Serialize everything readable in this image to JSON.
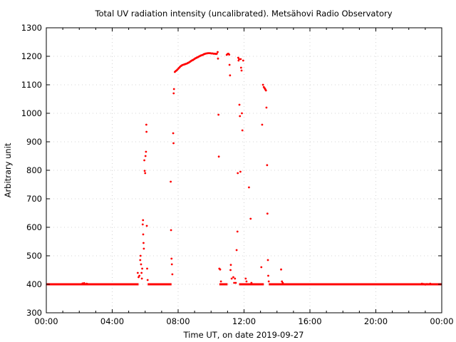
{
  "chart_data": {
    "type": "scatter",
    "title": "Total UV radiation intensity (uncalibrated). Metsähovi Radio Observatory",
    "xlabel": "Time UT, on date 2019-09-27",
    "ylabel": "Arbitrary unit",
    "xlim": [
      0,
      24
    ],
    "ylim": [
      300,
      1300
    ],
    "grid": true,
    "point_color": "#ff0000",
    "x_ticks": [
      {
        "value": 0,
        "label": "00:00"
      },
      {
        "value": 4,
        "label": "04:00"
      },
      {
        "value": 8,
        "label": "08:00"
      },
      {
        "value": 12,
        "label": "12:00"
      },
      {
        "value": 16,
        "label": "16:00"
      },
      {
        "value": 20,
        "label": "20:00"
      },
      {
        "value": 24,
        "label": "00:00"
      }
    ],
    "y_ticks": [
      300,
      400,
      500,
      600,
      700,
      800,
      900,
      1000,
      1100,
      1200,
      1300
    ],
    "baseline": {
      "value": 400,
      "segments": [
        [
          0,
          5.6
        ],
        [
          6.15,
          7.6
        ],
        [
          10.5,
          11.0
        ],
        [
          11.7,
          13.2
        ],
        [
          13.5,
          24.0
        ]
      ]
    },
    "points": [
      [
        2.2,
        403
      ],
      [
        2.3,
        404
      ],
      [
        2.45,
        402
      ],
      [
        2.5,
        401
      ],
      [
        5.55,
        440
      ],
      [
        5.6,
        425
      ],
      [
        5.65,
        430
      ],
      [
        5.7,
        485
      ],
      [
        5.72,
        500
      ],
      [
        5.75,
        470
      ],
      [
        5.78,
        440
      ],
      [
        5.8,
        420
      ],
      [
        5.82,
        455
      ],
      [
        5.85,
        610
      ],
      [
        5.87,
        625
      ],
      [
        5.88,
        575
      ],
      [
        5.9,
        545
      ],
      [
        5.92,
        525
      ],
      [
        5.95,
        835
      ],
      [
        5.97,
        798
      ],
      [
        6.0,
        790
      ],
      [
        6.02,
        850
      ],
      [
        6.05,
        865
      ],
      [
        6.07,
        960
      ],
      [
        6.08,
        935
      ],
      [
        6.1,
        605
      ],
      [
        6.12,
        455
      ],
      [
        6.15,
        415
      ],
      [
        7.55,
        760
      ],
      [
        7.57,
        590
      ],
      [
        7.6,
        490
      ],
      [
        7.62,
        470
      ],
      [
        7.65,
        435
      ],
      [
        7.7,
        930
      ],
      [
        7.72,
        895
      ],
      [
        7.73,
        1070
      ],
      [
        7.75,
        1085
      ],
      [
        7.8,
        1145
      ],
      [
        7.85,
        1148
      ],
      [
        7.9,
        1150
      ],
      [
        7.95,
        1153
      ],
      [
        8.0,
        1156
      ],
      [
        8.05,
        1159
      ],
      [
        8.1,
        1162
      ],
      [
        8.15,
        1165
      ],
      [
        8.2,
        1167
      ],
      [
        8.25,
        1169
      ],
      [
        8.3,
        1170
      ],
      [
        8.35,
        1171
      ],
      [
        8.4,
        1172
      ],
      [
        8.45,
        1173
      ],
      [
        8.5,
        1174
      ],
      [
        8.55,
        1175
      ],
      [
        8.6,
        1177
      ],
      [
        8.65,
        1178
      ],
      [
        8.7,
        1180
      ],
      [
        8.75,
        1182
      ],
      [
        8.8,
        1184
      ],
      [
        8.85,
        1186
      ],
      [
        8.9,
        1187
      ],
      [
        8.95,
        1189
      ],
      [
        9.0,
        1191
      ],
      [
        9.05,
        1193
      ],
      [
        9.1,
        1194
      ],
      [
        9.15,
        1196
      ],
      [
        9.2,
        1197
      ],
      [
        9.25,
        1199
      ],
      [
        9.3,
        1200
      ],
      [
        9.35,
        1202
      ],
      [
        9.4,
        1203
      ],
      [
        9.45,
        1204
      ],
      [
        9.5,
        1205
      ],
      [
        9.55,
        1207
      ],
      [
        9.6,
        1208
      ],
      [
        9.65,
        1209
      ],
      [
        9.7,
        1210
      ],
      [
        9.75,
        1210
      ],
      [
        9.8,
        1211
      ],
      [
        9.85,
        1211
      ],
      [
        9.9,
        1211
      ],
      [
        9.95,
        1211
      ],
      [
        10.0,
        1210
      ],
      [
        10.05,
        1210
      ],
      [
        10.1,
        1210
      ],
      [
        10.15,
        1209
      ],
      [
        10.2,
        1209
      ],
      [
        10.25,
        1209
      ],
      [
        10.3,
        1208
      ],
      [
        10.35,
        1209
      ],
      [
        10.4,
        1215
      ],
      [
        10.42,
        1192
      ],
      [
        10.45,
        995
      ],
      [
        10.47,
        848
      ],
      [
        10.5,
        455
      ],
      [
        10.55,
        452
      ],
      [
        10.6,
        410
      ],
      [
        10.95,
        1205
      ],
      [
        11.0,
        1208
      ],
      [
        11.05,
        1209
      ],
      [
        11.1,
        1206
      ],
      [
        11.12,
        1170
      ],
      [
        11.15,
        1133
      ],
      [
        11.18,
        450
      ],
      [
        11.2,
        468
      ],
      [
        11.25,
        420
      ],
      [
        11.35,
        425
      ],
      [
        11.4,
        405
      ],
      [
        11.45,
        420
      ],
      [
        11.5,
        405
      ],
      [
        11.55,
        520
      ],
      [
        11.6,
        585
      ],
      [
        11.62,
        790
      ],
      [
        11.65,
        1195
      ],
      [
        11.67,
        1185
      ],
      [
        11.7,
        1190
      ],
      [
        11.72,
        1030
      ],
      [
        11.75,
        990
      ],
      [
        11.78,
        795
      ],
      [
        11.8,
        1190
      ],
      [
        11.82,
        1160
      ],
      [
        11.85,
        1150
      ],
      [
        11.87,
        1000
      ],
      [
        11.9,
        940
      ],
      [
        11.95,
        1185
      ],
      [
        12.1,
        420
      ],
      [
        12.15,
        410
      ],
      [
        12.3,
        740
      ],
      [
        12.4,
        630
      ],
      [
        12.45,
        405
      ],
      [
        13.05,
        460
      ],
      [
        13.1,
        960
      ],
      [
        13.15,
        1100
      ],
      [
        13.2,
        1092
      ],
      [
        13.25,
        1088
      ],
      [
        13.28,
        1085
      ],
      [
        13.3,
        1083
      ],
      [
        13.33,
        1080
      ],
      [
        13.36,
        1020
      ],
      [
        13.4,
        818
      ],
      [
        13.42,
        648
      ],
      [
        13.45,
        485
      ],
      [
        13.47,
        430
      ],
      [
        13.5,
        410
      ],
      [
        14.25,
        452
      ],
      [
        14.3,
        410
      ],
      [
        14.35,
        405
      ],
      [
        22.8,
        402
      ],
      [
        22.9,
        401
      ],
      [
        23.0,
        399
      ],
      [
        23.1,
        401
      ],
      [
        23.2,
        400
      ],
      [
        23.3,
        402
      ]
    ]
  }
}
